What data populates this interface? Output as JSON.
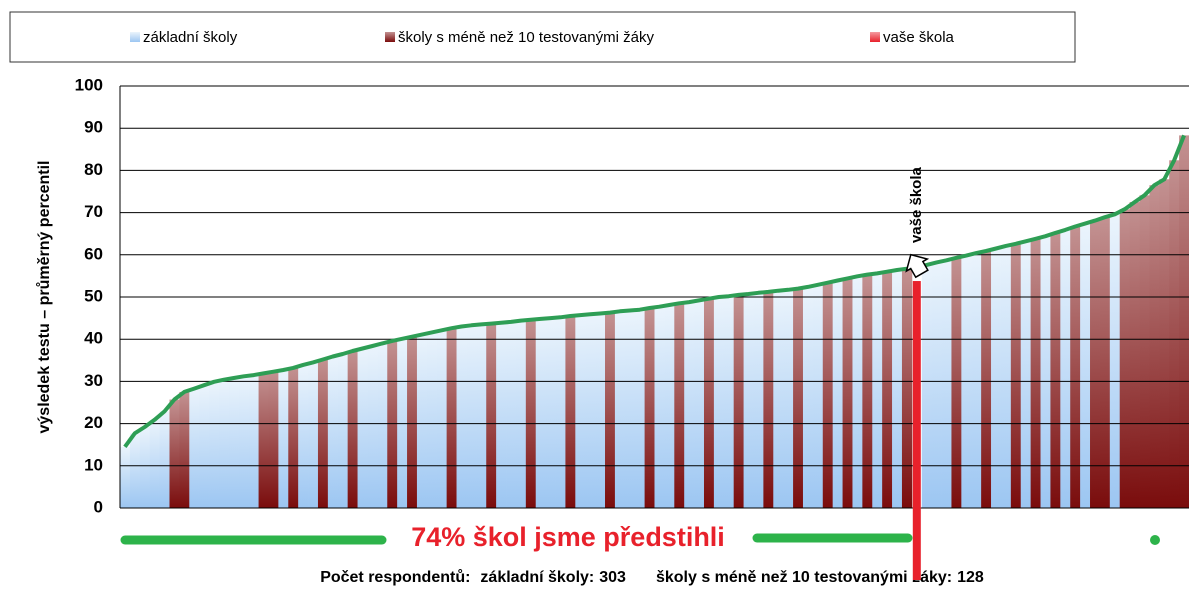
{
  "chart_data": {
    "type": "bar",
    "ylabel": "výsledek testu – průměrný percentil",
    "annotation": "74% škol jsme předstihli",
    "ylim": [
      0,
      100
    ],
    "yticks": [
      0,
      10,
      20,
      30,
      40,
      50,
      60,
      70,
      80,
      90,
      100
    ],
    "grid": true,
    "line_color": "#2e9e55",
    "series": [
      {
        "name": "základní školy",
        "color": "#9cc6f2",
        "values": [
          14.5,
          17.7,
          19.2,
          20.9,
          22.9,
          null,
          null,
          28.3,
          29.1,
          29.9,
          30.4,
          30.8,
          31.2,
          31.5,
          null,
          null,
          32.7,
          null,
          33.9,
          34.5,
          null,
          35.9,
          36.5,
          null,
          37.8,
          38.4,
          39.0,
          null,
          40.1,
          null,
          41.1,
          41.6,
          42.1,
          null,
          43.0,
          43.3,
          43.5,
          null,
          43.9,
          44.1,
          44.4,
          null,
          44.8,
          45.0,
          45.2,
          null,
          45.7,
          45.9,
          46.1,
          null,
          46.6,
          46.8,
          47.0,
          null,
          47.7,
          48.1,
          null,
          48.8,
          49.2,
          null,
          50.0,
          50.2,
          null,
          50.7,
          51.0,
          null,
          51.5,
          51.7,
          null,
          52.4,
          52.9,
          null,
          53.9,
          null,
          54.9,
          null,
          55.6,
          null,
          56.4,
          null,
          null,
          57.6,
          58.2,
          58.7,
          null,
          59.8,
          60.4,
          null,
          61.5,
          62.1,
          null,
          63.2,
          null,
          64.4,
          null,
          65.9,
          null,
          67.4,
          null,
          null,
          69.6,
          null,
          null,
          null,
          null,
          null,
          null,
          null
        ]
      },
      {
        "name": "školy s méně než 10 testovanými žáky",
        "color": "#7a0c0c",
        "values": [
          null,
          null,
          null,
          null,
          null,
          25.7,
          27.5,
          null,
          null,
          null,
          null,
          null,
          null,
          null,
          31.9,
          32.3,
          null,
          33.2,
          null,
          null,
          35.2,
          null,
          null,
          37.2,
          null,
          null,
          null,
          39.6,
          null,
          40.6,
          null,
          null,
          null,
          42.6,
          null,
          null,
          null,
          43.7,
          null,
          null,
          null,
          44.6,
          null,
          null,
          null,
          45.5,
          null,
          null,
          null,
          46.3,
          null,
          null,
          null,
          47.4,
          null,
          null,
          48.5,
          null,
          null,
          49.6,
          null,
          null,
          50.5,
          null,
          null,
          51.2,
          null,
          null,
          52.0,
          null,
          null,
          53.4,
          null,
          54.4,
          null,
          55.3,
          null,
          56.0,
          null,
          56.7,
          null,
          null,
          null,
          null,
          59.3,
          null,
          null,
          60.9,
          null,
          null,
          62.6,
          null,
          63.8,
          null,
          65.2,
          null,
          66.7,
          null,
          68.1,
          68.9,
          null,
          70.8,
          72.5,
          74.1,
          76.5,
          77.9,
          82.4,
          88.3
        ]
      },
      {
        "name": "vaše škola",
        "color": "#e8212b",
        "values": [
          null,
          null,
          null,
          null,
          null,
          null,
          null,
          null,
          null,
          null,
          null,
          null,
          null,
          null,
          null,
          null,
          null,
          null,
          null,
          null,
          null,
          null,
          null,
          null,
          null,
          null,
          null,
          null,
          null,
          null,
          null,
          null,
          null,
          null,
          null,
          null,
          null,
          null,
          null,
          null,
          null,
          null,
          null,
          null,
          null,
          null,
          null,
          null,
          null,
          null,
          null,
          null,
          null,
          null,
          null,
          null,
          null,
          null,
          null,
          null,
          null,
          null,
          null,
          null,
          null,
          null,
          null,
          null,
          null,
          null,
          null,
          null,
          null,
          null,
          null,
          null,
          null,
          null,
          null,
          null,
          57.1,
          null,
          null,
          null,
          null,
          null,
          null,
          null,
          null,
          null,
          null,
          null,
          null,
          null,
          null,
          null,
          null,
          null,
          null,
          null,
          null,
          null,
          null,
          null,
          null,
          null,
          null,
          null
        ]
      }
    ],
    "footer": {
      "title": "Počet respondentů:",
      "groups": [
        {
          "label": "základní školy:",
          "count": 303
        },
        {
          "label": "školy s méně než 10 testovanými žáky:",
          "count": 128
        }
      ]
    }
  }
}
